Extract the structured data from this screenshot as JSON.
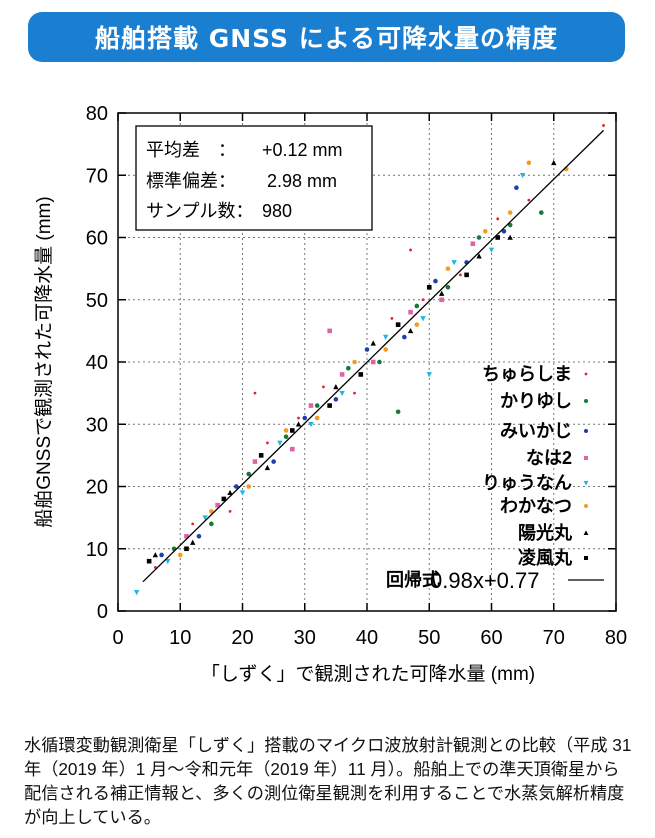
{
  "title": "船舶搭載 GNSS による可降水量の精度",
  "chart_data": {
    "type": "scatter",
    "xlabel": "「しずく」で観測された可降水量 (mm)",
    "ylabel": "船舶GNSSで観測された可降水量 (mm)",
    "xlim": [
      0,
      80
    ],
    "ylim": [
      0,
      80
    ],
    "xticks": [
      "0",
      "10",
      "20",
      "30",
      "40",
      "50",
      "60",
      "70",
      "80"
    ],
    "yticks": [
      "0",
      "10",
      "20",
      "30",
      "40",
      "50",
      "60",
      "70",
      "80"
    ],
    "grid": true,
    "legend_placement": "bottom-right",
    "stats": [
      {
        "label": "平均差　：",
        "value": "+0.12 mm"
      },
      {
        "label": "標準偏差：",
        "value": " 2.98 mm"
      },
      {
        "label": "サンプル数：",
        "value": "980"
      }
    ],
    "regression": {
      "label": "回帰式",
      "equation": "0.98x+0.77",
      "slope": 0.98,
      "intercept": 0.77
    },
    "series": [
      {
        "name": "ちゅらしま",
        "color": "#e3232b",
        "marker": "dot",
        "points": [
          [
            6,
            7
          ],
          [
            12,
            14
          ],
          [
            18,
            16
          ],
          [
            24,
            27
          ],
          [
            29,
            31
          ],
          [
            33,
            36
          ],
          [
            38,
            35
          ],
          [
            44,
            47
          ],
          [
            49,
            50
          ],
          [
            55,
            54
          ],
          [
            61,
            63
          ],
          [
            66,
            66
          ],
          [
            78,
            78
          ],
          [
            22,
            35
          ],
          [
            47,
            58
          ]
        ]
      },
      {
        "name": "かりゆし",
        "color": "#16793a",
        "marker": "circle",
        "points": [
          [
            9,
            10
          ],
          [
            15,
            14
          ],
          [
            21,
            22
          ],
          [
            27,
            28
          ],
          [
            32,
            33
          ],
          [
            37,
            39
          ],
          [
            42,
            40
          ],
          [
            48,
            49
          ],
          [
            53,
            52
          ],
          [
            58,
            60
          ],
          [
            63,
            62
          ],
          [
            68,
            64
          ],
          [
            45,
            32
          ]
        ]
      },
      {
        "name": "みいかじ",
        "color": "#1f3fae",
        "marker": "circle",
        "points": [
          [
            7,
            9
          ],
          [
            13,
            12
          ],
          [
            19,
            20
          ],
          [
            25,
            24
          ],
          [
            30,
            31
          ],
          [
            35,
            34
          ],
          [
            40,
            42
          ],
          [
            46,
            44
          ],
          [
            51,
            53
          ],
          [
            56,
            56
          ],
          [
            62,
            61
          ],
          [
            64,
            68
          ]
        ]
      },
      {
        "name": "なは2",
        "color": "#e063a8",
        "marker": "square",
        "points": [
          [
            11,
            12
          ],
          [
            16,
            17
          ],
          [
            22,
            24
          ],
          [
            28,
            26
          ],
          [
            31,
            33
          ],
          [
            36,
            38
          ],
          [
            41,
            40
          ],
          [
            47,
            48
          ],
          [
            52,
            50
          ],
          [
            57,
            59
          ],
          [
            34,
            45
          ]
        ]
      },
      {
        "name": "りゅうなん",
        "color": "#1fb7e0",
        "marker": "triangle-down",
        "points": [
          [
            3,
            3
          ],
          [
            8,
            8
          ],
          [
            14,
            15
          ],
          [
            20,
            19
          ],
          [
            26,
            27
          ],
          [
            31,
            30
          ],
          [
            36,
            35
          ],
          [
            43,
            44
          ],
          [
            49,
            47
          ],
          [
            54,
            56
          ],
          [
            60,
            58
          ],
          [
            65,
            70
          ],
          [
            50,
            38
          ]
        ]
      },
      {
        "name": "わかなつ",
        "color": "#f59b1c",
        "marker": "circle",
        "points": [
          [
            10,
            9
          ],
          [
            15,
            16
          ],
          [
            21,
            20
          ],
          [
            27,
            29
          ],
          [
            32,
            31
          ],
          [
            38,
            40
          ],
          [
            43,
            42
          ],
          [
            48,
            46
          ],
          [
            53,
            55
          ],
          [
            59,
            61
          ],
          [
            63,
            64
          ],
          [
            72,
            71
          ],
          [
            66,
            72
          ]
        ]
      },
      {
        "name": "陽光丸",
        "color": "#000000",
        "marker": "triangle",
        "points": [
          [
            6,
            9
          ],
          [
            12,
            11
          ],
          [
            18,
            19
          ],
          [
            24,
            23
          ],
          [
            29,
            30
          ],
          [
            35,
            36
          ],
          [
            41,
            43
          ],
          [
            47,
            45
          ],
          [
            52,
            51
          ],
          [
            58,
            57
          ],
          [
            63,
            60
          ],
          [
            70,
            72
          ]
        ]
      },
      {
        "name": "凌風丸",
        "color": "#000000",
        "marker": "square",
        "points": [
          [
            5,
            8
          ],
          [
            11,
            10
          ],
          [
            17,
            18
          ],
          [
            23,
            25
          ],
          [
            28,
            29
          ],
          [
            34,
            33
          ],
          [
            39,
            38
          ],
          [
            45,
            46
          ],
          [
            50,
            52
          ],
          [
            56,
            54
          ],
          [
            61,
            60
          ]
        ]
      }
    ]
  },
  "caption": "水循環変動観測衛星「しずく」搭載のマイクロ波放射計観測との比較（平成 31 年（2019 年）1 月～令和元年（2019 年）11 月）。船舶上での準天頂衛星から配信される補正情報と、多くの測位衛星観測を利用することで水蒸気解析精度が向上している。"
}
